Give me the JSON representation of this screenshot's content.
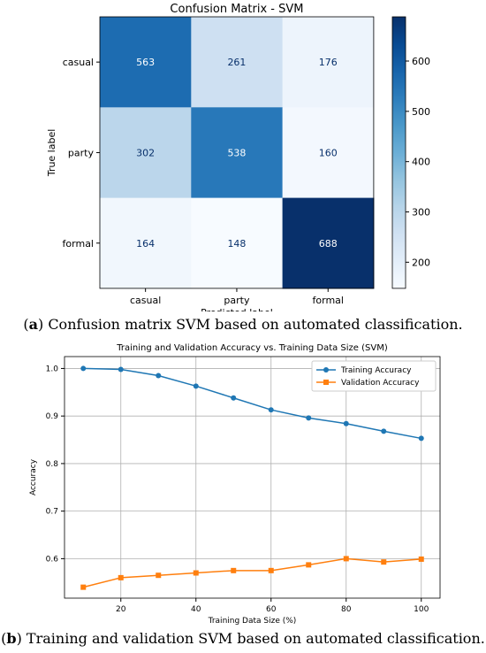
{
  "captions": {
    "a_letter": "a",
    "a_text": "Confusion matrix SVM based on automated classification.",
    "b_letter": "b",
    "b_text": "Training and validation SVM based on automated classification."
  },
  "chart_data": [
    {
      "type": "heatmap",
      "title": "Confusion Matrix - SVM",
      "xlabel": "Predicted label",
      "ylabel": "True label",
      "x_categories": [
        "casual",
        "party",
        "formal"
      ],
      "y_categories": [
        "casual",
        "party",
        "formal"
      ],
      "values": [
        [
          563,
          261,
          176
        ],
        [
          302,
          538,
          160
        ],
        [
          164,
          148,
          688
        ]
      ],
      "colormap": "Blues",
      "color_range": [
        148,
        688
      ],
      "colorbar_ticks": [
        200,
        300,
        400,
        500,
        600
      ]
    },
    {
      "type": "line",
      "title": "Training and Validation Accuracy vs. Training Data Size (SVM)",
      "xlabel": "Training Data Size (%)",
      "ylabel": "Accuracy",
      "x": [
        10,
        20,
        30,
        40,
        50,
        60,
        70,
        80,
        90,
        100
      ],
      "xlim": [
        5,
        105
      ],
      "ylim": [
        0.517,
        1.025
      ],
      "xticks": [
        20,
        40,
        60,
        80,
        100
      ],
      "yticks": [
        0.6,
        0.7,
        0.8,
        0.9,
        1.0
      ],
      "grid": true,
      "legend": "top-right",
      "series": [
        {
          "name": "Training Accuracy",
          "color": "#1f77b4",
          "marker": "circle",
          "values": [
            1.0,
            0.998,
            0.985,
            0.963,
            0.938,
            0.913,
            0.896,
            0.884,
            0.868,
            0.853
          ]
        },
        {
          "name": "Validation Accuracy",
          "color": "#ff7f0e",
          "marker": "square",
          "values": [
            0.54,
            0.56,
            0.565,
            0.57,
            0.575,
            0.575,
            0.587,
            0.6,
            0.593,
            0.599
          ]
        }
      ]
    }
  ]
}
